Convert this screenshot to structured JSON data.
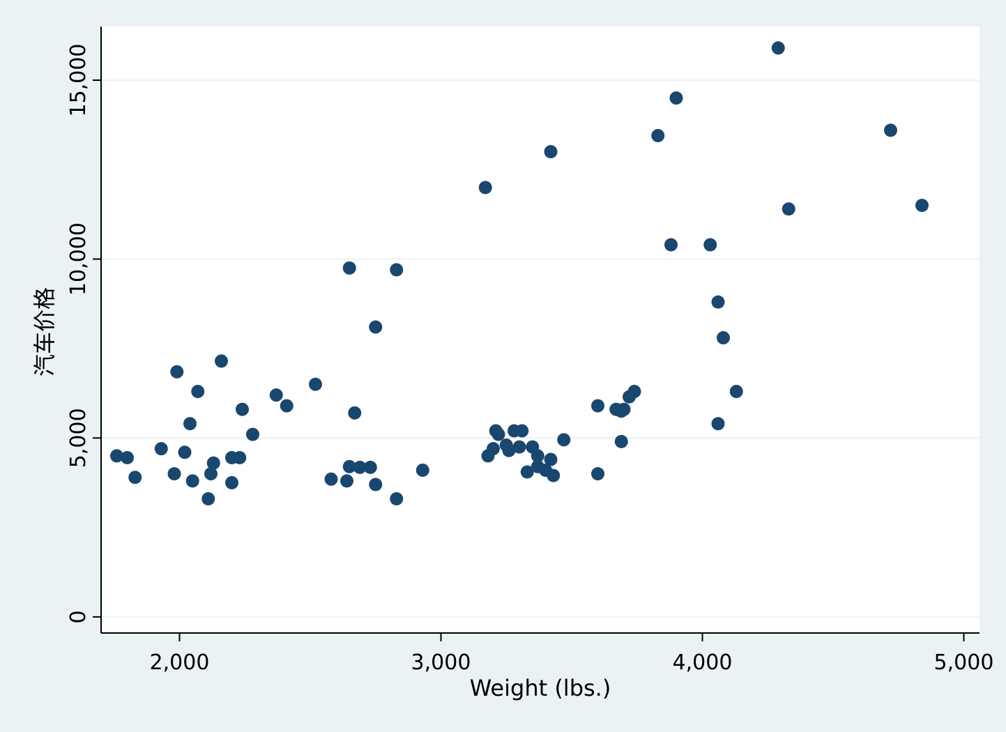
{
  "chart_data": {
    "type": "scatter",
    "title": "",
    "xlabel": "Weight (lbs.)",
    "ylabel": "汽车价格",
    "xlim": [
      1700,
      5060
    ],
    "ylim": [
      -450,
      16500
    ],
    "xticks": [
      2000,
      3000,
      4000,
      5000
    ],
    "xtick_labels": [
      "2,000",
      "3,000",
      "4,000",
      "5,000"
    ],
    "yticks": [
      0,
      5000,
      10000,
      15000
    ],
    "ytick_labels": [
      "0",
      "5,000",
      "10,000",
      "15,000"
    ],
    "grid": "horizontal",
    "marker_color": "#1a476f",
    "plot_background": "#ffffff",
    "figure_background": "#eaf2f3",
    "grid_color": "#eaf2f3",
    "series": [
      {
        "points": [
          [
            1760,
            4500
          ],
          [
            1800,
            4450
          ],
          [
            1830,
            3900
          ],
          [
            1930,
            4700
          ],
          [
            1980,
            4000
          ],
          [
            1990,
            6850
          ],
          [
            2020,
            4600
          ],
          [
            2040,
            5400
          ],
          [
            2050,
            3800
          ],
          [
            2070,
            6300
          ],
          [
            2110,
            3300
          ],
          [
            2120,
            4000
          ],
          [
            2130,
            4300
          ],
          [
            2160,
            7150
          ],
          [
            2200,
            4450
          ],
          [
            2200,
            3750
          ],
          [
            2230,
            4450
          ],
          [
            2240,
            5800
          ],
          [
            2280,
            5100
          ],
          [
            2370,
            6200
          ],
          [
            2410,
            5900
          ],
          [
            2520,
            6500
          ],
          [
            2580,
            3850
          ],
          [
            2640,
            3800
          ],
          [
            2650,
            4200
          ],
          [
            2650,
            9750
          ],
          [
            2670,
            5700
          ],
          [
            2690,
            4180
          ],
          [
            2730,
            4180
          ],
          [
            2750,
            3700
          ],
          [
            2750,
            8100
          ],
          [
            2830,
            3300
          ],
          [
            2830,
            9700
          ],
          [
            2930,
            4100
          ],
          [
            3170,
            12000
          ],
          [
            3180,
            4500
          ],
          [
            3200,
            4700
          ],
          [
            3210,
            5200
          ],
          [
            3220,
            5100
          ],
          [
            3250,
            4800
          ],
          [
            3260,
            4650
          ],
          [
            3280,
            5200
          ],
          [
            3300,
            4750
          ],
          [
            3310,
            5200
          ],
          [
            3330,
            4050
          ],
          [
            3350,
            4750
          ],
          [
            3370,
            4500
          ],
          [
            3370,
            4200
          ],
          [
            3400,
            4100
          ],
          [
            3420,
            4400
          ],
          [
            3420,
            13000
          ],
          [
            3430,
            3950
          ],
          [
            3470,
            4950
          ],
          [
            3600,
            5900
          ],
          [
            3600,
            4000
          ],
          [
            3670,
            5800
          ],
          [
            3690,
            5750
          ],
          [
            3690,
            4900
          ],
          [
            3700,
            5800
          ],
          [
            3720,
            6150
          ],
          [
            3740,
            6300
          ],
          [
            3830,
            13450
          ],
          [
            3880,
            10400
          ],
          [
            3900,
            14500
          ],
          [
            4030,
            10400
          ],
          [
            4060,
            8800
          ],
          [
            4060,
            5400
          ],
          [
            4080,
            7800
          ],
          [
            4130,
            6300
          ],
          [
            4290,
            15900
          ],
          [
            4330,
            11400
          ],
          [
            4720,
            13600
          ],
          [
            4840,
            11500
          ]
        ]
      }
    ]
  }
}
